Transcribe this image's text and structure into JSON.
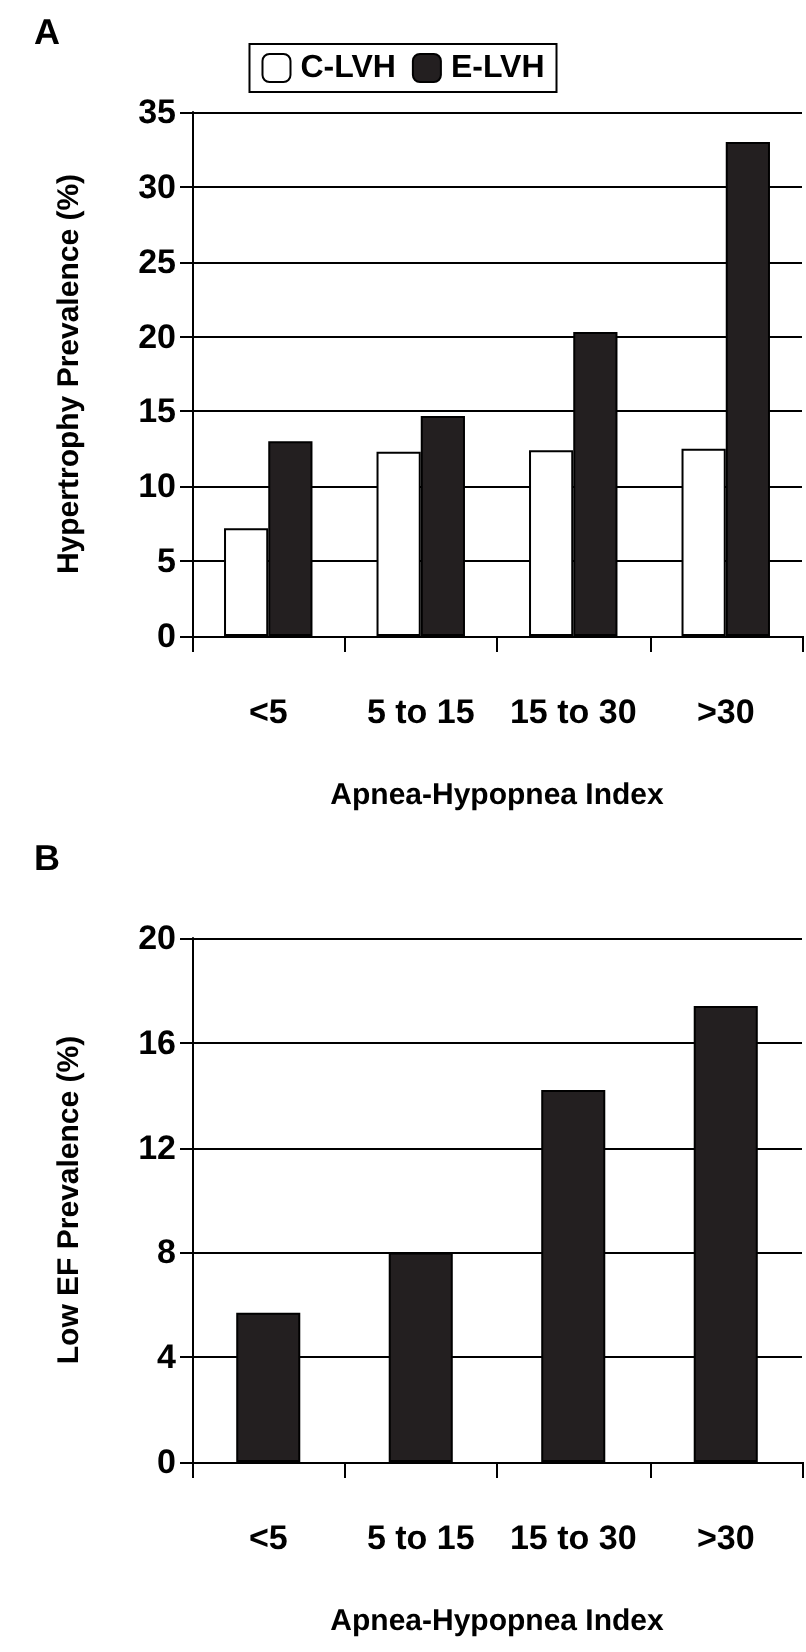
{
  "chart_data": [
    {
      "type": "bar",
      "title": "A",
      "categories": [
        "<5",
        "5 to 15",
        "15 to 30",
        ">30"
      ],
      "xlabel": "Apnea-Hypopnea Index",
      "ylabel": "Hypertrophy Prevalence (%)",
      "ylim": [
        0,
        35
      ],
      "yticks": [
        0,
        5,
        10,
        15,
        20,
        25,
        30,
        35
      ],
      "grid": "y",
      "legend": "top",
      "series": [
        {
          "name": "C-LVH",
          "color": "#ffffff",
          "values": [
            7.2,
            12.3,
            12.4,
            12.5
          ]
        },
        {
          "name": "E-LVH",
          "color": "#231f20",
          "values": [
            13.0,
            14.7,
            20.3,
            33.0
          ]
        }
      ]
    },
    {
      "type": "bar",
      "title": "B",
      "categories": [
        "<5",
        "5 to 15",
        "15 to 30",
        ">30"
      ],
      "xlabel": "Apnea-Hypopnea Index",
      "ylabel": "Low EF Prevalence (%)",
      "ylim": [
        0,
        20
      ],
      "yticks": [
        0,
        4,
        8,
        12,
        16,
        20
      ],
      "grid": "y",
      "series": [
        {
          "color": "#231f20",
          "values": [
            5.7,
            8.0,
            14.2,
            17.4
          ]
        }
      ]
    }
  ]
}
